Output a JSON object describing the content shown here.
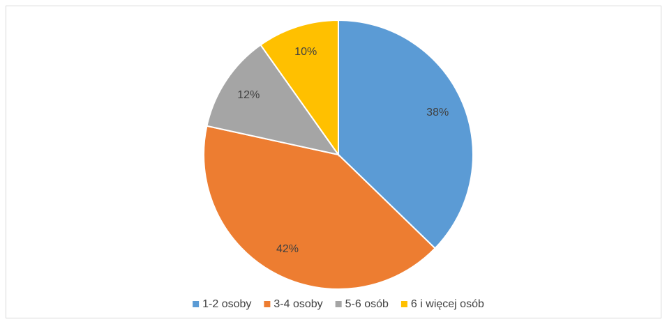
{
  "chart_data": {
    "type": "pie",
    "categories": [
      "1-2 osoby",
      "3-4 osoby",
      "5-6 osób",
      "6 i więcej osób"
    ],
    "values": [
      38,
      42,
      12,
      10
    ],
    "value_labels": [
      "38%",
      "42%",
      "12%",
      "10%"
    ],
    "colors": [
      "#5b9bd5",
      "#ed7d31",
      "#a5a5a5",
      "#ffc000"
    ],
    "legend": "bottom"
  }
}
